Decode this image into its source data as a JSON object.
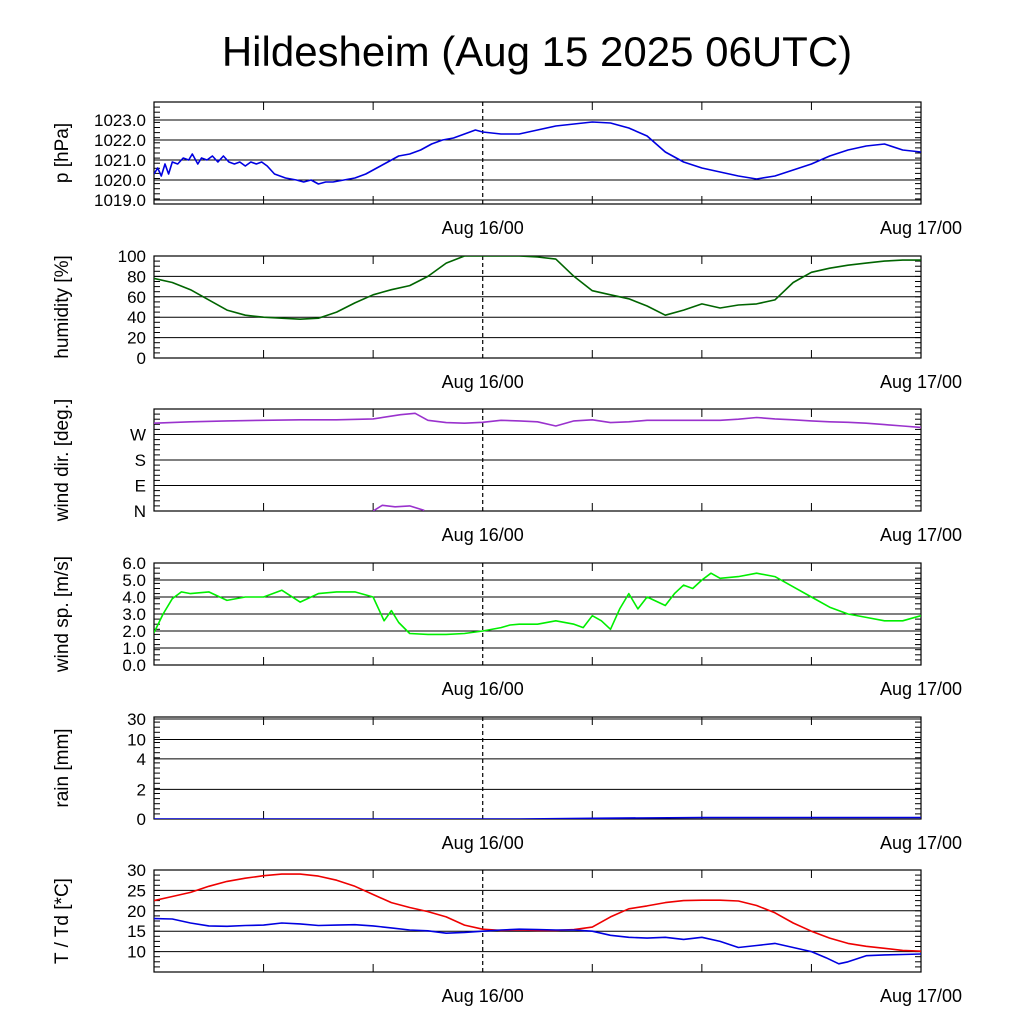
{
  "title": "Hildesheim (Aug 15 2025 06UTC)",
  "x_tick_labels": [
    "Aug 16/00",
    "Aug 17/00"
  ],
  "colors": {
    "pressure": "#0000e0",
    "humidity": "#006400",
    "wind_dir": "#9a32cd",
    "wind_speed": "#00ee00",
    "rain": "#0000e0",
    "temperature": "#ee0000",
    "dewpoint": "#0000e0",
    "grid": "#000000"
  },
  "chart_data": [
    {
      "type": "line",
      "id": "pressure",
      "ylabel": "p [hPa]",
      "x_range_hours": [
        0,
        42
      ],
      "ylim": [
        1018.8,
        1023.9
      ],
      "y_ticks": [
        "1019.0",
        "1020.0",
        "1021.0",
        "1022.0",
        "1023.0"
      ],
      "y_tick_values": [
        1019,
        1020,
        1021,
        1022,
        1023
      ],
      "series": [
        {
          "key": "pressure",
          "x": [
            0,
            0.2,
            0.4,
            0.6,
            0.8,
            1.0,
            1.3,
            1.6,
            1.9,
            2.1,
            2.4,
            2.6,
            2.9,
            3.2,
            3.5,
            3.8,
            4.1,
            4.4,
            4.7,
            5.0,
            5.3,
            5.6,
            5.9,
            6.2,
            6.6,
            7.2,
            7.8,
            8.2,
            8.6,
            9.0,
            9.4,
            9.8,
            10.4,
            11.0,
            11.6,
            12.2,
            12.8,
            13.4,
            14.0,
            14.6,
            15.2,
            15.8,
            16.4,
            17.0,
            17.6,
            18.0,
            19.0,
            20.0,
            21.0,
            22.0,
            23.0,
            24.0,
            25.0,
            26.0,
            27.0,
            28.0,
            29.0,
            30.0,
            31.0,
            32.0,
            33.0,
            34.0,
            35.0,
            36.0,
            37.0,
            38.0,
            39.0,
            40.0,
            41.0,
            42.0
          ],
          "y": [
            1020.3,
            1020.6,
            1020.2,
            1020.8,
            1020.3,
            1020.9,
            1020.8,
            1021.1,
            1021.0,
            1021.3,
            1020.8,
            1021.1,
            1021.0,
            1021.2,
            1020.9,
            1021.2,
            1020.9,
            1020.8,
            1020.9,
            1020.7,
            1020.9,
            1020.8,
            1020.9,
            1020.7,
            1020.3,
            1020.1,
            1020.0,
            1019.9,
            1020.0,
            1019.8,
            1019.9,
            1019.9,
            1020.0,
            1020.1,
            1020.3,
            1020.6,
            1020.9,
            1021.2,
            1021.3,
            1021.5,
            1021.8,
            1022.0,
            1022.1,
            1022.3,
            1022.5,
            1022.4,
            1022.3,
            1022.3,
            1022.5,
            1022.7,
            1022.8,
            1022.9,
            1022.85,
            1022.6,
            1022.2,
            1021.4,
            1020.9,
            1020.6,
            1020.4,
            1020.2,
            1020.05,
            1020.2,
            1020.5,
            1020.8,
            1021.2,
            1021.5,
            1021.7,
            1021.8,
            1021.5,
            1021.4
          ]
        }
      ]
    },
    {
      "type": "line",
      "id": "humidity",
      "ylabel": "humidity [%]",
      "x_range_hours": [
        0,
        42
      ],
      "ylim": [
        0,
        100
      ],
      "y_ticks": [
        "0",
        "20",
        "40",
        "60",
        "80",
        "100"
      ],
      "y_tick_values": [
        0,
        20,
        40,
        60,
        80,
        100
      ],
      "series": [
        {
          "key": "humidity",
          "x": [
            0,
            1,
            2,
            3,
            4,
            5,
            6,
            7,
            8,
            9,
            10,
            11,
            12,
            13,
            14,
            15,
            16,
            17,
            18,
            19,
            20,
            21,
            22,
            23,
            24,
            25,
            26,
            27,
            28,
            29,
            30,
            31,
            32,
            33,
            34,
            35,
            36,
            37,
            38,
            39,
            40,
            41,
            42
          ],
          "y": [
            78,
            74,
            67,
            57,
            47,
            42,
            40,
            39,
            38,
            39,
            45,
            54,
            62,
            67,
            71,
            80,
            93,
            100,
            100,
            100,
            100,
            99,
            97,
            80,
            66,
            62,
            58,
            51,
            42,
            47,
            53,
            49,
            52,
            53,
            57,
            74,
            84,
            88,
            91,
            93,
            95,
            96,
            96
          ],
          "_note_unused": ""
        }
      ]
    },
    {
      "type": "line",
      "id": "wind_dir",
      "ylabel": "wind dir. [deg.]",
      "x_range_hours": [
        0,
        42
      ],
      "ylim": [
        0,
        360
      ],
      "y_ticks": [
        "N",
        "E",
        "S",
        "W"
      ],
      "y_tick_values": [
        0,
        90,
        180,
        270
      ],
      "series": [
        {
          "key": "wind_dir",
          "segments": [
            {
              "x": [
                0,
                2,
                4,
                6,
                8,
                10,
                12,
                13.5,
                14.3,
                15,
                16,
                17,
                18,
                19,
                20,
                21,
                22,
                23,
                24,
                25,
                26,
                27,
                28,
                29,
                30,
                31,
                32,
                33,
                34,
                35,
                36,
                37,
                38,
                39,
                40,
                41,
                42
              ],
              "y": [
                310,
                315,
                318,
                320,
                322,
                322,
                325,
                340,
                345,
                320,
                312,
                310,
                313,
                320,
                318,
                315,
                300,
                318,
                322,
                312,
                315,
                320,
                320,
                320,
                320,
                320,
                324,
                330,
                325,
                322,
                318,
                315,
                313,
                310,
                305,
                300,
                295
              ]
            },
            {
              "x": [
                12.0,
                12.5,
                13.2,
                14.0,
                14.8
              ],
              "y": [
                0,
                20,
                15,
                18,
                2
              ]
            }
          ]
        }
      ]
    },
    {
      "type": "line",
      "id": "wind_speed",
      "ylabel": "wind sp. [m/s]",
      "x_range_hours": [
        0,
        42
      ],
      "ylim": [
        0,
        6
      ],
      "y_ticks": [
        "0.0",
        "1.0",
        "2.0",
        "3.0",
        "4.0",
        "5.0",
        "6.0"
      ],
      "y_tick_values": [
        0,
        1,
        2,
        3,
        4,
        5,
        6
      ],
      "series": [
        {
          "key": "wind_speed",
          "x": [
            0,
            0.5,
            1,
            1.5,
            2,
            3,
            4,
            5,
            6,
            7,
            8,
            9,
            10,
            11,
            12,
            12.6,
            13,
            13.4,
            14,
            15,
            16,
            17,
            18,
            19,
            19.5,
            20,
            21,
            22,
            23,
            23.5,
            24,
            24.5,
            25,
            25.5,
            26,
            26.5,
            27,
            28,
            28.5,
            29,
            29.5,
            30,
            30.5,
            31,
            32,
            33,
            34,
            35,
            36,
            37,
            38,
            39,
            40,
            41,
            42
          ],
          "y": [
            1.9,
            3.0,
            3.9,
            4.3,
            4.2,
            4.3,
            3.8,
            4.0,
            4.0,
            4.4,
            3.7,
            4.2,
            4.3,
            4.3,
            4.0,
            2.6,
            3.2,
            2.5,
            1.85,
            1.8,
            1.8,
            1.85,
            2.0,
            2.2,
            2.35,
            2.4,
            2.4,
            2.6,
            2.4,
            2.2,
            2.9,
            2.6,
            2.1,
            3.3,
            4.2,
            3.3,
            4.0,
            3.5,
            4.2,
            4.7,
            4.5,
            5.0,
            5.4,
            5.1,
            5.2,
            5.4,
            5.2,
            4.6,
            4.0,
            3.4,
            3.0,
            2.8,
            2.6,
            2.6,
            2.9
          ]
        }
      ]
    },
    {
      "type": "line",
      "id": "rain",
      "ylabel": "rain [mm]",
      "x_range_hours": [
        0,
        42
      ],
      "scale": "nonlinear",
      "ylim": [
        0,
        30
      ],
      "y_ticks": [
        "0",
        "2",
        "4",
        "10",
        "30"
      ],
      "y_tick_values": [
        0,
        2,
        4,
        10,
        30
      ],
      "series": [
        {
          "key": "rain",
          "x": [
            0,
            20,
            24,
            30,
            42
          ],
          "y": [
            0,
            0,
            0.05,
            0.1,
            0.1
          ]
        }
      ]
    },
    {
      "type": "line",
      "id": "temperature",
      "ylabel": "T / Td [*C]",
      "x_range_hours": [
        0,
        42
      ],
      "ylim": [
        5,
        30
      ],
      "y_ticks": [
        "10",
        "15",
        "20",
        "25",
        "30"
      ],
      "y_tick_values": [
        10,
        15,
        20,
        25,
        30
      ],
      "series": [
        {
          "key": "temperature",
          "x": [
            0,
            1,
            2,
            3,
            4,
            5,
            6,
            7,
            8,
            9,
            10,
            11,
            12,
            13,
            14,
            15,
            16,
            17,
            18,
            19,
            20,
            21,
            22,
            23,
            24,
            25,
            26,
            27,
            28,
            29,
            30,
            31,
            32,
            33,
            34,
            35,
            36,
            37,
            38,
            39,
            40,
            41,
            42
          ],
          "y": [
            22.5,
            23.5,
            24.5,
            26,
            27.2,
            28,
            28.6,
            29,
            29,
            28.5,
            27.5,
            26,
            24,
            22,
            20.8,
            19.8,
            18.5,
            16.5,
            15.5,
            15.2,
            15.3,
            15.2,
            15.2,
            15.4,
            16,
            18.5,
            20.5,
            21.2,
            22,
            22.5,
            22.6,
            22.6,
            22.4,
            21.3,
            19.5,
            17,
            15,
            13.3,
            12,
            11.3,
            10.8,
            10.3,
            10.1
          ]
        },
        {
          "key": "dewpoint",
          "x": [
            0,
            1,
            2,
            3,
            4,
            5,
            6,
            7,
            8,
            9,
            10,
            11,
            12,
            13,
            14,
            15,
            16,
            17,
            18,
            19,
            20,
            21,
            22,
            23,
            24,
            25,
            26,
            27,
            28,
            29,
            30,
            31,
            32,
            33,
            34,
            35,
            36,
            36.8,
            37.5,
            38,
            39,
            40,
            41,
            42
          ],
          "y": [
            18.1,
            18,
            17,
            16.3,
            16.2,
            16.4,
            16.5,
            17,
            16.8,
            16.4,
            16.5,
            16.6,
            16.3,
            15.8,
            15.3,
            15.1,
            14.5,
            14.7,
            15.0,
            15.3,
            15.5,
            15.4,
            15.3,
            15.3,
            15.0,
            14.0,
            13.5,
            13.3,
            13.5,
            13.0,
            13.5,
            12.5,
            11,
            11.5,
            12,
            11,
            10,
            8.5,
            7,
            7.5,
            9,
            9.2,
            9.3,
            9.4
          ]
        }
      ]
    }
  ]
}
